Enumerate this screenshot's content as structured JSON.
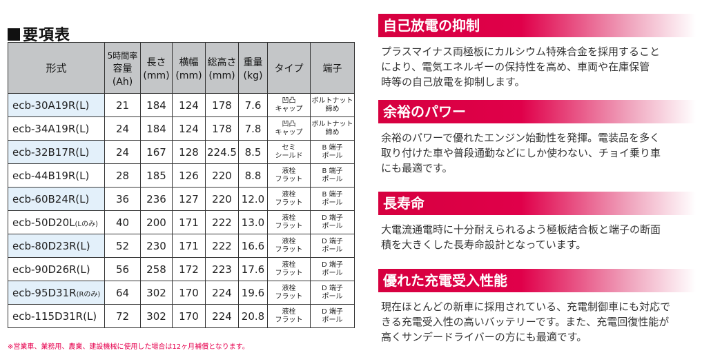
{
  "spec": {
    "title": "要項表",
    "headers": {
      "model": "形式",
      "capacity": [
        "5時間率",
        "容量",
        "(Ah)"
      ],
      "length": [
        "長さ",
        "(mm)"
      ],
      "width": [
        "横幅",
        "(mm)"
      ],
      "height": [
        "総高さ",
        "(mm)"
      ],
      "weight": [
        "重量",
        "(kg)"
      ],
      "type": "タイプ",
      "terminal": "端子"
    },
    "rows": [
      {
        "model": "ecb-30A19R(L)",
        "model_note": "",
        "cap": "21",
        "len": "184",
        "wid": "124",
        "hgt": "178",
        "wgt": "7.6",
        "type1": "凹凸",
        "type2": "キャップ",
        "term1": "ボルトナット",
        "term2": "締め"
      },
      {
        "model": "ecb-34A19R(L)",
        "model_note": "",
        "cap": "24",
        "len": "184",
        "wid": "124",
        "hgt": "178",
        "wgt": "7.8",
        "type1": "凹凸",
        "type2": "キャップ",
        "term1": "ボルトナット",
        "term2": "締め"
      },
      {
        "model": "ecb-32B17R(L)",
        "model_note": "",
        "cap": "24",
        "len": "167",
        "wid": "128",
        "hgt": "224.5",
        "wgt": "8.5",
        "type1": "セミ",
        "type2": "シールド",
        "term1": "B 端子",
        "term2": "ポール"
      },
      {
        "model": "ecb-44B19R(L)",
        "model_note": "",
        "cap": "28",
        "len": "185",
        "wid": "126",
        "hgt": "220",
        "wgt": "8.8",
        "type1": "液栓",
        "type2": "フラット",
        "term1": "B 端子",
        "term2": "ポール"
      },
      {
        "model": "ecb-60B24R(L)",
        "model_note": "",
        "cap": "36",
        "len": "236",
        "wid": "127",
        "hgt": "220",
        "wgt": "12.0",
        "type1": "液栓",
        "type2": "フラット",
        "term1": "B 端子",
        "term2": "ポール"
      },
      {
        "model": "ecb-50D20L",
        "model_note": "(Lのみ)",
        "cap": "40",
        "len": "200",
        "wid": "171",
        "hgt": "222",
        "wgt": "13.0",
        "type1": "液栓",
        "type2": "フラット",
        "term1": "D 端子",
        "term2": "ポール"
      },
      {
        "model": "ecb-80D23R(L)",
        "model_note": "",
        "cap": "52",
        "len": "230",
        "wid": "171",
        "hgt": "222",
        "wgt": "16.6",
        "type1": "液栓",
        "type2": "フラット",
        "term1": "D 端子",
        "term2": "ポール"
      },
      {
        "model": "ecb-90D26R(L)",
        "model_note": "",
        "cap": "56",
        "len": "258",
        "wid": "172",
        "hgt": "223",
        "wgt": "17.6",
        "type1": "液栓",
        "type2": "フラット",
        "term1": "D 端子",
        "term2": "ポール"
      },
      {
        "model": "ecb-95D31R",
        "model_note": "(Rのみ)",
        "cap": "64",
        "len": "302",
        "wid": "170",
        "hgt": "224",
        "wgt": "19.6",
        "type1": "液栓",
        "type2": "フラット",
        "term1": "D 端子",
        "term2": "ポール"
      },
      {
        "model": "ecb-115D31R(L)",
        "model_note": "",
        "cap": "72",
        "len": "302",
        "wid": "170",
        "hgt": "224",
        "wgt": "20.8",
        "type1": "液栓",
        "type2": "フラット",
        "term1": "D 端子",
        "term2": "ポール"
      }
    ],
    "note": "※営業車、業務用、農業、建設機械に使用した場合は12ヶ月補償となります。"
  },
  "features": [
    {
      "title": "自己放電の抑制",
      "body": [
        "プラスマイナス両極板にカルシウム特殊合金を採用すること",
        "により、電気エネルギーの保持性を高め、車両や在庫保管",
        "時等の自己放電を抑制します。"
      ]
    },
    {
      "title": "余裕のパワー",
      "body": [
        "余裕のパワーで優れたエンジン始動性を発揮。電装品を多く",
        "取り付けた車や普段通勤などにしか使わない、チョイ乗り車",
        "にも最適です。"
      ]
    },
    {
      "title": "長寿命",
      "body": [
        "大電流通電時に十分耐えられるよう極板結合板と端子の断面",
        "積を大きくした長寿命設計となっています。"
      ]
    },
    {
      "title": "優れた充電受入性能",
      "body": [
        "現在ほとんどの新車に採用されている、充電制御車にも対応で",
        "きる充電受入性の高いバッテリーです。また、充電回復性能が",
        "高くサンデードライバーの方にも最適です。"
      ]
    }
  ],
  "colors": {
    "band": "#d6003f",
    "header_bg": "#c4c6c8",
    "row_tint": "#e3f0fa",
    "note": "#e6004e"
  }
}
